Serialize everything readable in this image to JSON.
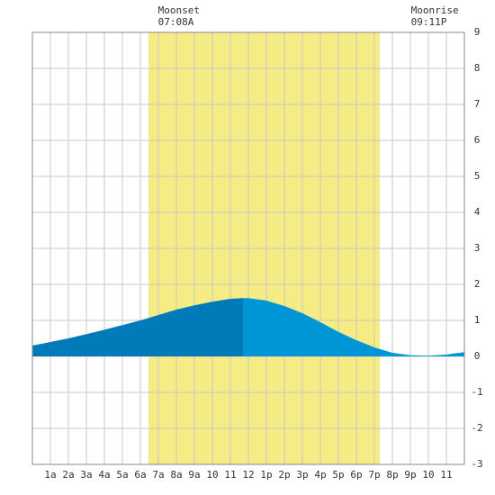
{
  "chart_data": {
    "type": "area",
    "x": [
      0,
      1,
      2,
      3,
      4,
      5,
      6,
      7,
      8,
      9,
      10,
      11,
      11.7,
      12,
      13,
      14,
      15,
      16,
      17,
      18,
      19,
      20,
      21,
      22,
      23,
      24
    ],
    "series": [
      {
        "values": [
          0.3,
          0.4,
          0.5,
          0.62,
          0.74,
          0.87,
          1.0,
          1.15,
          1.3,
          1.42,
          1.52,
          1.6,
          1.62,
          1.62,
          1.55,
          1.4,
          1.2,
          0.95,
          0.68,
          0.45,
          0.25,
          0.1,
          0.03,
          0.02,
          0.05,
          0.12
        ],
        "colors": [
          "#007ab8",
          "#0096d6"
        ]
      }
    ],
    "daylight": [
      6.45,
      19.3
    ],
    "daylight_color": "#f5ec86",
    "events": [
      {
        "name": "Moonset",
        "time": "07:08A",
        "x": 7.13
      },
      {
        "name": "Moonrise",
        "time": "09:11P",
        "x": 21.18
      }
    ],
    "xlim": [
      0,
      24
    ],
    "ylim": [
      -3,
      9
    ],
    "yticks": [
      -3,
      -2,
      -1,
      0,
      1,
      2,
      3,
      4,
      5,
      6,
      7,
      8,
      9
    ],
    "xticks": [
      {
        "value": 1,
        "label": "1a"
      },
      {
        "value": 2,
        "label": "2a"
      },
      {
        "value": 3,
        "label": "3a"
      },
      {
        "value": 4,
        "label": "4a"
      },
      {
        "value": 5,
        "label": "5a"
      },
      {
        "value": 6,
        "label": "6a"
      },
      {
        "value": 7,
        "label": "7a"
      },
      {
        "value": 8,
        "label": "8a"
      },
      {
        "value": 9,
        "label": "9a"
      },
      10,
      11,
      12,
      {
        "value": 13,
        "label": "1p"
      },
      {
        "value": 14,
        "label": "2p"
      },
      {
        "value": 15,
        "label": "3p"
      },
      {
        "value": 16,
        "label": "4p"
      },
      {
        "value": 17,
        "label": "5p"
      },
      {
        "value": 18,
        "label": "6p"
      },
      {
        "value": 19,
        "label": "7p"
      },
      {
        "value": 20,
        "label": "8p"
      },
      {
        "value": 21,
        "label": "9p"
      },
      {
        "value": 22,
        "label": "10"
      },
      {
        "value": 23,
        "label": "11"
      }
    ],
    "grid": true
  }
}
